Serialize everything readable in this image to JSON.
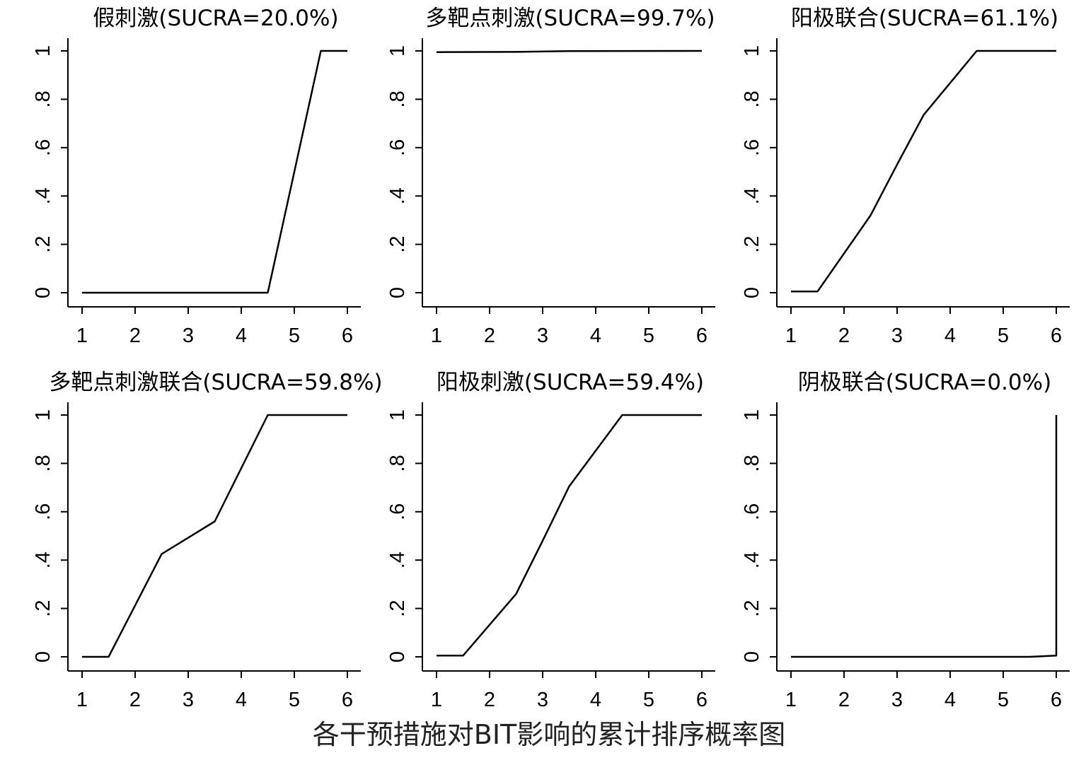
{
  "figure_caption": "各干预措施对BIT影响的累计排序概率图",
  "chart_data": [
    {
      "type": "line",
      "title": "假刺激(SUCRA=20.0%)",
      "x": [
        1,
        2,
        3,
        4,
        4.5,
        5.5,
        6
      ],
      "y": [
        0,
        0,
        0,
        0,
        0,
        1,
        1
      ],
      "xticks": [
        1,
        2,
        3,
        4,
        5,
        6
      ],
      "yticks": [
        "0",
        ".2",
        ".4",
        ".6",
        ".8",
        "1"
      ],
      "xlim": [
        1,
        6
      ],
      "ylim": [
        0,
        1
      ],
      "grid": false,
      "legend": "none"
    },
    {
      "type": "line",
      "title": "多靶点刺激(SUCRA=99.7%)",
      "x": [
        1,
        2.5,
        3.5,
        6
      ],
      "y": [
        0.995,
        0.996,
        0.999,
        1
      ],
      "xticks": [
        1,
        2,
        3,
        4,
        5,
        6
      ],
      "yticks": [
        "0",
        ".2",
        ".4",
        ".6",
        ".8",
        "1"
      ],
      "xlim": [
        1,
        6
      ],
      "ylim": [
        0,
        1
      ],
      "grid": false,
      "legend": "none"
    },
    {
      "type": "line",
      "title": "阳极联合(SUCRA=61.1%)",
      "x": [
        1,
        1.5,
        2.5,
        3,
        3.5,
        4.5,
        6
      ],
      "y": [
        0.005,
        0.005,
        0.32,
        0.53,
        0.735,
        1,
        1
      ],
      "xticks": [
        1,
        2,
        3,
        4,
        5,
        6
      ],
      "yticks": [
        "0",
        ".2",
        ".4",
        ".6",
        ".8",
        "1"
      ],
      "xlim": [
        1,
        6
      ],
      "ylim": [
        0,
        1
      ],
      "grid": false,
      "legend": "none"
    },
    {
      "type": "line",
      "title": "多靶点刺激联合(SUCRA=59.8%)",
      "x": [
        1,
        1.5,
        2.5,
        3.5,
        4,
        4.5,
        6
      ],
      "y": [
        0,
        0,
        0.425,
        0.56,
        0.78,
        1,
        1
      ],
      "xticks": [
        1,
        2,
        3,
        4,
        5,
        6
      ],
      "yticks": [
        "0",
        ".2",
        ".4",
        ".6",
        ".8",
        "1"
      ],
      "xlim": [
        1,
        6
      ],
      "ylim": [
        0,
        1
      ],
      "grid": false,
      "legend": "none"
    },
    {
      "type": "line",
      "title": "阳极刺激(SUCRA=59.4%)",
      "x": [
        1,
        1.5,
        2.5,
        3,
        3.5,
        4.5,
        6
      ],
      "y": [
        0.005,
        0.005,
        0.26,
        0.48,
        0.705,
        1,
        1
      ],
      "xticks": [
        1,
        2,
        3,
        4,
        5,
        6
      ],
      "yticks": [
        "0",
        ".2",
        ".4",
        ".6",
        ".8",
        "1"
      ],
      "xlim": [
        1,
        6
      ],
      "ylim": [
        0,
        1
      ],
      "grid": false,
      "legend": "none"
    },
    {
      "type": "line",
      "title": "阴极联合(SUCRA=0.0%)",
      "x": [
        1,
        5.5,
        6,
        6
      ],
      "y": [
        0,
        0,
        0.005,
        1
      ],
      "xticks": [
        1,
        2,
        3,
        4,
        5,
        6
      ],
      "yticks": [
        "0",
        ".2",
        ".4",
        ".6",
        ".8",
        "1"
      ],
      "xlim": [
        1,
        6
      ],
      "ylim": [
        0,
        1
      ],
      "grid": false,
      "legend": "none"
    }
  ]
}
